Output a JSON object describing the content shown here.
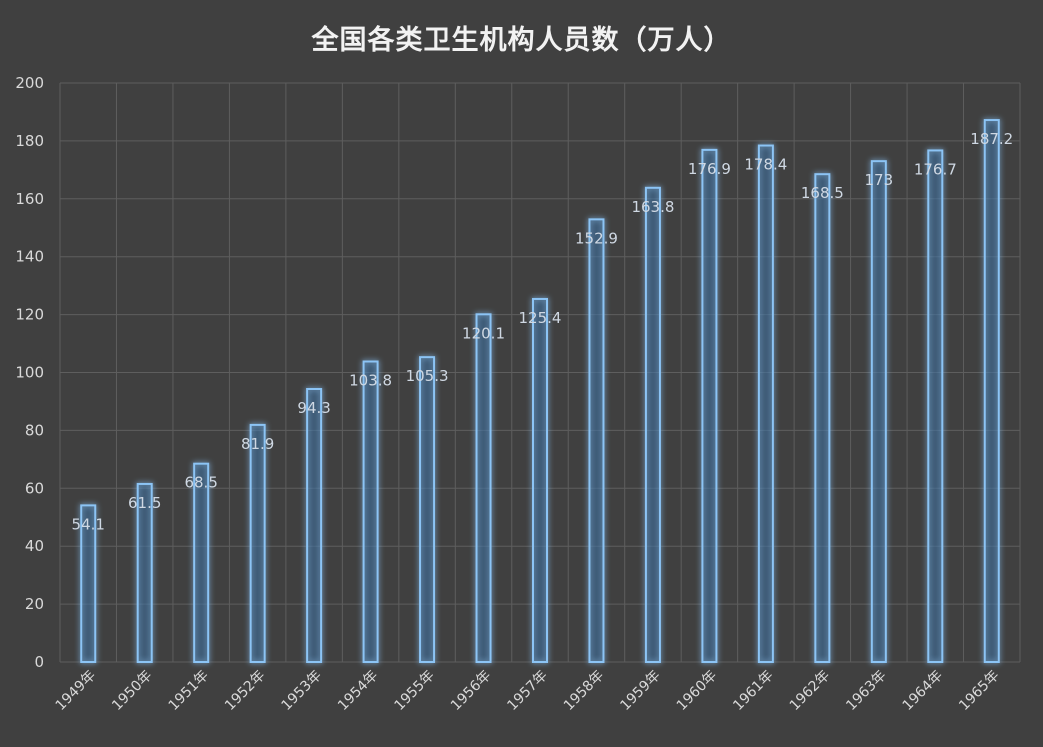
{
  "chart_data": {
    "type": "bar",
    "title": "全国各类卫生机构人员数（万人）",
    "categories": [
      "1949年",
      "1950年",
      "1951年",
      "1952年",
      "1953年",
      "1954年",
      "1955年",
      "1956年",
      "1957年",
      "1958年",
      "1959年",
      "1960年",
      "1961年",
      "1962年",
      "1963年",
      "1964年",
      "1965年"
    ],
    "values": [
      54.1,
      61.5,
      68.5,
      81.9,
      94.3,
      103.8,
      105.3,
      120.1,
      125.4,
      152.9,
      163.8,
      176.9,
      178.4,
      168.5,
      173,
      176.7,
      187.2
    ],
    "value_labels": [
      "54.1",
      "61.5",
      "68.5",
      "81.9",
      "94.3",
      "103.8",
      "105.3",
      "120.1",
      "125.4",
      "152.9",
      "163.8",
      "176.9",
      "178.4",
      "168.5",
      "173",
      "176.7",
      "187.2"
    ],
    "xlabel": "",
    "ylabel": "",
    "ylim": [
      0,
      200
    ],
    "yticks": [
      "0",
      "20",
      "40",
      "60",
      "80",
      "100",
      "120",
      "140",
      "160",
      "180",
      "200"
    ],
    "grid": true,
    "legend": "none",
    "colors": {
      "background": "#404040",
      "bar_outline": "#8cc4f5",
      "grid": "#5e5e5e",
      "text": "#d9d9d9"
    }
  }
}
